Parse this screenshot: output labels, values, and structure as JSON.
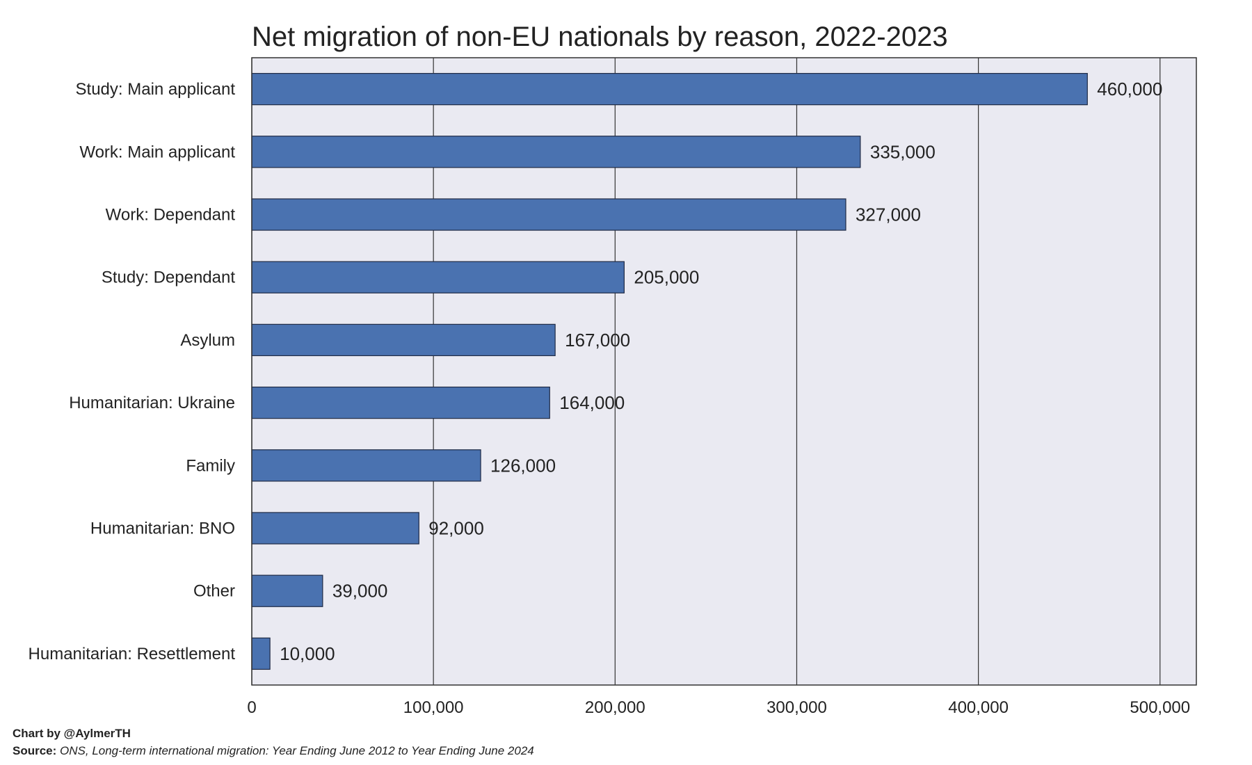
{
  "chart_data": {
    "type": "bar",
    "orientation": "horizontal",
    "title": "Net migration of non-EU nationals by reason, 2022-2023",
    "xlabel": "",
    "ylabel": "",
    "categories": [
      "Study: Main applicant",
      "Work: Main applicant",
      "Work: Dependant",
      "Study: Dependant",
      "Asylum",
      "Humanitarian: Ukraine",
      "Family",
      "Humanitarian: BNO",
      "Other",
      "Humanitarian: Resettlement"
    ],
    "values": [
      460000,
      335000,
      327000,
      205000,
      167000,
      164000,
      126000,
      92000,
      39000,
      10000
    ],
    "value_labels": [
      "460,000",
      "335,000",
      "327,000",
      "205,000",
      "167,000",
      "164,000",
      "126,000",
      "92,000",
      "39,000",
      "10,000"
    ],
    "xlim": [
      0,
      520000
    ],
    "x_ticks": [
      0,
      100000,
      200000,
      300000,
      400000,
      500000
    ],
    "x_tick_labels": [
      "0",
      "100,000",
      "200,000",
      "300,000",
      "400,000",
      "500,000"
    ],
    "grid": "vertical",
    "colors": {
      "bar": "#4a72b0",
      "bar_edge": "#1f2a44",
      "plot_background": "#eaeaf2",
      "grid": "#333333"
    }
  },
  "footer": {
    "credit": "Chart by @AylmerTH",
    "source_label": "Source:",
    "source_text": "ONS, Long-term international migration: Year Ending June 2012 to Year Ending June 2024"
  }
}
